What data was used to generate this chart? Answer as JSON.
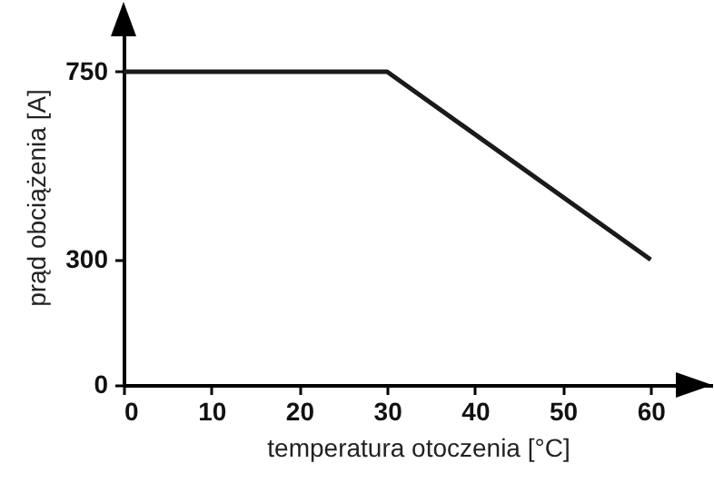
{
  "chart_data": {
    "type": "line",
    "xlabel": "temperatura otoczenia [°C]",
    "ylabel": "prąd obciążenia [A]",
    "x": [
      0,
      30,
      60
    ],
    "series": [
      {
        "color": "#1a1a1a",
        "values": [
          750,
          750,
          300
        ]
      }
    ],
    "xlim": [
      0,
      67
    ],
    "ylim": [
      0,
      900
    ],
    "xticks": [
      0,
      10,
      20,
      30,
      40,
      50,
      60
    ],
    "yticks": [
      0,
      300,
      750
    ],
    "grid": false,
    "marker": "none",
    "line_style": "solid"
  }
}
